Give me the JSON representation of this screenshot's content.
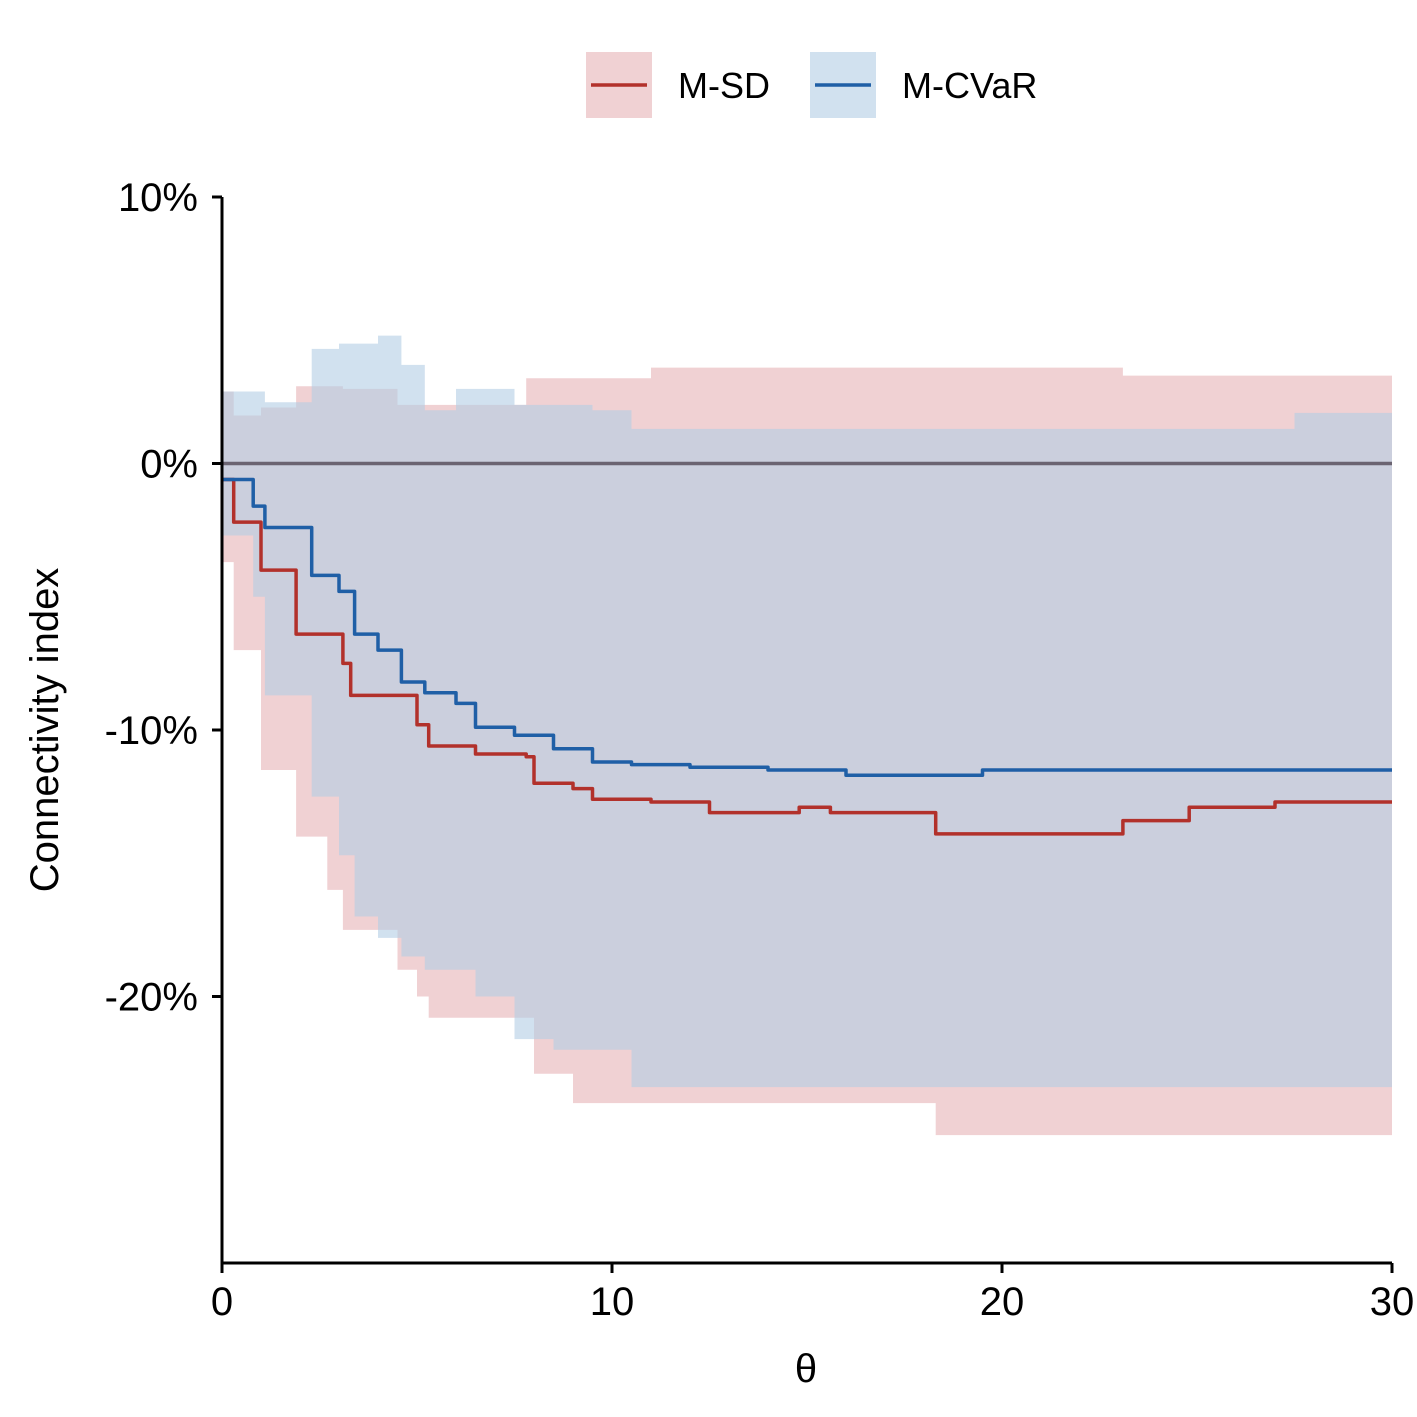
{
  "chart_data": {
    "type": "line",
    "xlabel": "θ",
    "ylabel": "Connectivity index",
    "xlim": [
      0,
      30
    ],
    "ylim": [
      -30,
      10
    ],
    "x_ticks": [
      0,
      10,
      20,
      30
    ],
    "x_tick_labels": [
      "0",
      "10",
      "20",
      "30"
    ],
    "y_ticks": [
      10,
      0,
      -10,
      -20
    ],
    "y_tick_labels": [
      "10%",
      "0%",
      "-10%",
      "-20%"
    ],
    "reference_line": 0,
    "grid": false,
    "legend_position": "top",
    "series": [
      {
        "name": "M-SD",
        "color": "#b2312b",
        "band_color": "#e6b3b5",
        "x": [
          0,
          0.2,
          0.3,
          0.9,
          1.0,
          1.7,
          1.9,
          2.7,
          3.1,
          3.3,
          4.5,
          5.0,
          5.3,
          6.5,
          7.8,
          8.0,
          9.0,
          9.5,
          11,
          12.5,
          14.8,
          15.6,
          18.3,
          20,
          23.1,
          24.8,
          27.0,
          30
        ],
        "mean": [
          -0.6,
          -0.6,
          -2.2,
          -2.2,
          -4.0,
          -4.0,
          -6.4,
          -6.4,
          -7.5,
          -8.7,
          -8.7,
          -9.8,
          -10.6,
          -10.9,
          -11.0,
          -12.0,
          -12.2,
          -12.6,
          -12.7,
          -13.1,
          -12.9,
          -13.1,
          -13.9,
          -13.9,
          -13.4,
          -12.9,
          -12.7,
          -12.7
        ],
        "upper": [
          2.7,
          2.7,
          1.8,
          1.8,
          2.1,
          2.1,
          2.9,
          2.9,
          2.8,
          2.8,
          2.2,
          2.2,
          2.2,
          2.2,
          3.2,
          3.2,
          3.2,
          3.2,
          3.6,
          3.6,
          3.6,
          3.6,
          3.6,
          3.6,
          3.3,
          3.3,
          3.3,
          3.3
        ],
        "lower": [
          -3.7,
          -3.7,
          -7.0,
          -7.0,
          -11.5,
          -11.5,
          -14.0,
          -16.0,
          -17.5,
          -17.5,
          -19.0,
          -20.0,
          -20.8,
          -20.8,
          -20.8,
          -22.9,
          -24.0,
          -24.0,
          -24.0,
          -24.0,
          -24.0,
          -24.0,
          -25.2,
          -25.2,
          -25.2,
          -25.2,
          -25.2,
          -25.2
        ]
      },
      {
        "name": "M-CVaR",
        "color": "#1f5fa6",
        "band_color": "#b3cde4",
        "x": [
          0,
          0.5,
          0.8,
          1.1,
          2.0,
          2.3,
          3.0,
          3.4,
          4.0,
          4.6,
          5.2,
          6.0,
          6.5,
          7.5,
          8.5,
          9.5,
          10.5,
          12,
          14,
          16,
          18,
          19.5,
          22,
          25,
          27.5,
          30
        ],
        "mean": [
          -0.6,
          -0.6,
          -1.6,
          -2.4,
          -2.4,
          -4.2,
          -4.8,
          -6.4,
          -7.0,
          -8.2,
          -8.6,
          -9.0,
          -9.9,
          -10.2,
          -10.7,
          -11.2,
          -11.3,
          -11.4,
          -11.5,
          -11.7,
          -11.7,
          -11.5,
          -11.5,
          -11.5,
          -11.5,
          -11.5
        ],
        "upper": [
          2.7,
          2.7,
          2.7,
          2.3,
          2.3,
          4.3,
          4.5,
          4.5,
          4.8,
          3.7,
          2.0,
          2.8,
          2.8,
          2.2,
          2.2,
          2.0,
          1.3,
          1.3,
          1.3,
          1.3,
          1.3,
          1.3,
          1.3,
          1.3,
          1.9,
          1.9
        ],
        "lower": [
          -2.7,
          -2.7,
          -5.0,
          -8.7,
          -8.7,
          -12.5,
          -14.7,
          -17.0,
          -17.8,
          -18.5,
          -19.0,
          -19.0,
          -20.0,
          -21.6,
          -22.0,
          -22.0,
          -23.4,
          -23.4,
          -23.4,
          -23.4,
          -23.4,
          -23.4,
          -23.4,
          -23.4,
          -23.4,
          -23.4
        ]
      }
    ]
  }
}
